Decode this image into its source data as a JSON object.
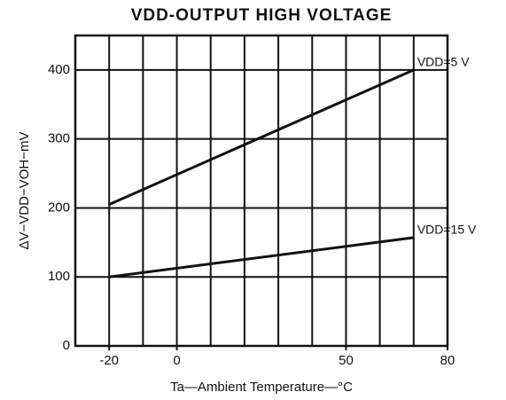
{
  "chart_data": {
    "type": "line",
    "title": "VDD-OUTPUT HIGH VOLTAGE",
    "x_label": "Ta—Ambient Temperature—°C",
    "y_label": "ΔV−VDD−VOH−mV",
    "xlim": [
      -30,
      80
    ],
    "xticks": [
      -20,
      0,
      50,
      80
    ],
    "x_gridlines": [
      -20,
      -10,
      0,
      10,
      20,
      30,
      40,
      50,
      60,
      70
    ],
    "ylim": [
      0,
      450
    ],
    "yticks": [
      0,
      100,
      200,
      300,
      400
    ],
    "grid": true,
    "series": [
      {
        "name": "VDD=5 V",
        "color": "#111111",
        "x": [
          -20,
          70
        ],
        "values": [
          205,
          400
        ]
      },
      {
        "name": "VDD=15 V",
        "color": "#111111",
        "x": [
          -20,
          70
        ],
        "values": [
          100,
          157
        ]
      }
    ]
  }
}
